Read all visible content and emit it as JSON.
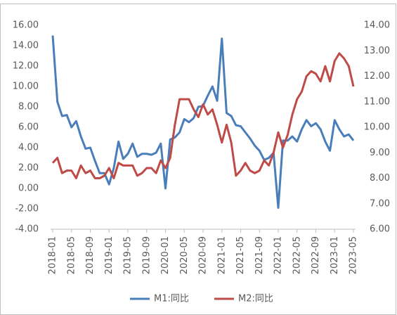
{
  "chart_data": {
    "type": "line",
    "categories": [
      "2018-01",
      null,
      null,
      null,
      "2018-05",
      null,
      null,
      null,
      "2018-09",
      null,
      null,
      null,
      "2019-01",
      null,
      null,
      null,
      "2019-05",
      null,
      null,
      null,
      "2019-09",
      null,
      null,
      null,
      "2020-01",
      null,
      null,
      null,
      "2020-05",
      null,
      null,
      null,
      "2020-09",
      null,
      null,
      null,
      "2021-01",
      null,
      null,
      null,
      "2021-05",
      null,
      null,
      null,
      "2021-09",
      null,
      null,
      null,
      "2022-01",
      null,
      null,
      null,
      "2022-05",
      null,
      null,
      null,
      "2022-09",
      null,
      null,
      null,
      "2023-01",
      null,
      null,
      null,
      "2023-05"
    ],
    "series": [
      {
        "name": "M1:同比",
        "color": "#4a7ebb",
        "axis": "y",
        "values": [
          15.0,
          8.5,
          7.1,
          7.2,
          6.0,
          6.6,
          5.1,
          3.9,
          4.0,
          2.7,
          1.5,
          1.5,
          0.4,
          2.0,
          4.6,
          2.9,
          3.4,
          4.4,
          3.1,
          3.4,
          3.4,
          3.3,
          3.5,
          4.4,
          0.0,
          4.8,
          5.0,
          5.5,
          6.8,
          6.5,
          6.9,
          8.0,
          8.1,
          9.1,
          10.0,
          8.6,
          14.7,
          7.4,
          7.1,
          6.2,
          6.1,
          5.5,
          4.9,
          4.2,
          3.7,
          2.8,
          3.0,
          3.5,
          -1.9,
          4.7,
          4.7,
          5.1,
          4.6,
          5.8,
          6.7,
          6.1,
          6.4,
          5.8,
          4.6,
          3.7,
          6.7,
          5.8,
          5.1,
          5.3,
          4.7
        ]
      },
      {
        "name": "M2:同比",
        "color": "#be4b48",
        "axis": "y2",
        "values": [
          8.6,
          8.8,
          8.2,
          8.3,
          8.3,
          8.0,
          8.5,
          8.2,
          8.3,
          8.0,
          8.0,
          8.1,
          8.4,
          8.0,
          8.6,
          8.5,
          8.5,
          8.5,
          8.1,
          8.2,
          8.4,
          8.4,
          8.2,
          8.7,
          8.4,
          8.8,
          10.1,
          11.1,
          11.1,
          11.1,
          10.7,
          10.4,
          10.9,
          10.5,
          10.7,
          10.1,
          9.4,
          10.1,
          9.4,
          8.1,
          8.3,
          8.6,
          8.3,
          8.2,
          8.3,
          8.7,
          8.5,
          9.0,
          9.8,
          9.2,
          9.7,
          10.5,
          11.1,
          11.4,
          12.0,
          12.2,
          12.1,
          11.8,
          12.4,
          11.8,
          12.6,
          12.9,
          12.7,
          12.4,
          11.6
        ]
      }
    ],
    "ylim": [
      -4,
      16
    ],
    "yticks": [
      {
        "value": -4,
        "label": "-4.00"
      },
      {
        "value": -2,
        "label": "-2.00"
      },
      {
        "value": 0,
        "label": "0.00"
      },
      {
        "value": 2,
        "label": "2.00"
      },
      {
        "value": 4,
        "label": "4.00"
      },
      {
        "value": 6,
        "label": "6.00"
      },
      {
        "value": 8,
        "label": "8.00"
      },
      {
        "value": 10,
        "label": "10.00"
      },
      {
        "value": 12,
        "label": "12.00"
      },
      {
        "value": 14,
        "label": "14.00"
      },
      {
        "value": 16,
        "label": "16.00"
      }
    ],
    "y2lim": [
      6,
      14
    ],
    "y2ticks": [
      {
        "value": 6,
        "label": "6.00"
      },
      {
        "value": 7,
        "label": "7.00"
      },
      {
        "value": 8,
        "label": "8.00"
      },
      {
        "value": 9,
        "label": "9.00"
      },
      {
        "value": 10,
        "label": "10.00"
      },
      {
        "value": 11,
        "label": "11.00"
      },
      {
        "value": 12,
        "label": "12.00"
      },
      {
        "value": 13,
        "label": "13.00"
      },
      {
        "value": 14,
        "label": "14.00"
      }
    ],
    "grid": false,
    "legend": "bottom"
  }
}
